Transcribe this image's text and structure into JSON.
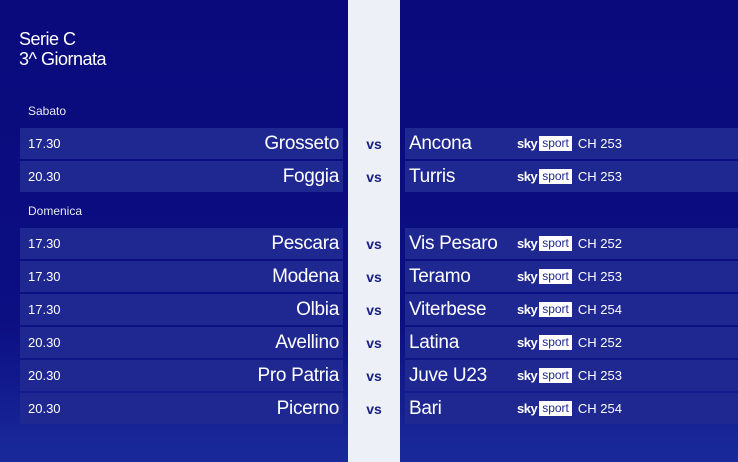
{
  "title": {
    "line1": "Serie C",
    "line2": "3^ Giornata"
  },
  "vs_label": "vs",
  "brand": {
    "sky": "sky",
    "sport": "sport"
  },
  "days": [
    {
      "label": "Sabato",
      "matches": [
        {
          "time": "17.30",
          "home": "Grosseto",
          "away": "Ancona",
          "channel": "CH 253"
        },
        {
          "time": "20.30",
          "home": "Foggia",
          "away": "Turris",
          "channel": "CH 253"
        }
      ]
    },
    {
      "label": "Domenica",
      "matches": [
        {
          "time": "17.30",
          "home": "Pescara",
          "away": "Vis Pesaro",
          "channel": "CH 252"
        },
        {
          "time": "17.30",
          "home": "Modena",
          "away": "Teramo",
          "channel": "CH 253"
        },
        {
          "time": "17.30",
          "home": "Olbia",
          "away": "Viterbese",
          "channel": "CH 254"
        },
        {
          "time": "20.30",
          "home": "Avellino",
          "away": "Latina",
          "channel": "CH 252"
        },
        {
          "time": "20.30",
          "home": "Pro Patria",
          "away": "Juve U23",
          "channel": "CH 253"
        },
        {
          "time": "20.30",
          "home": "Picerno",
          "away": "Bari",
          "channel": "CH 254"
        }
      ]
    }
  ]
}
